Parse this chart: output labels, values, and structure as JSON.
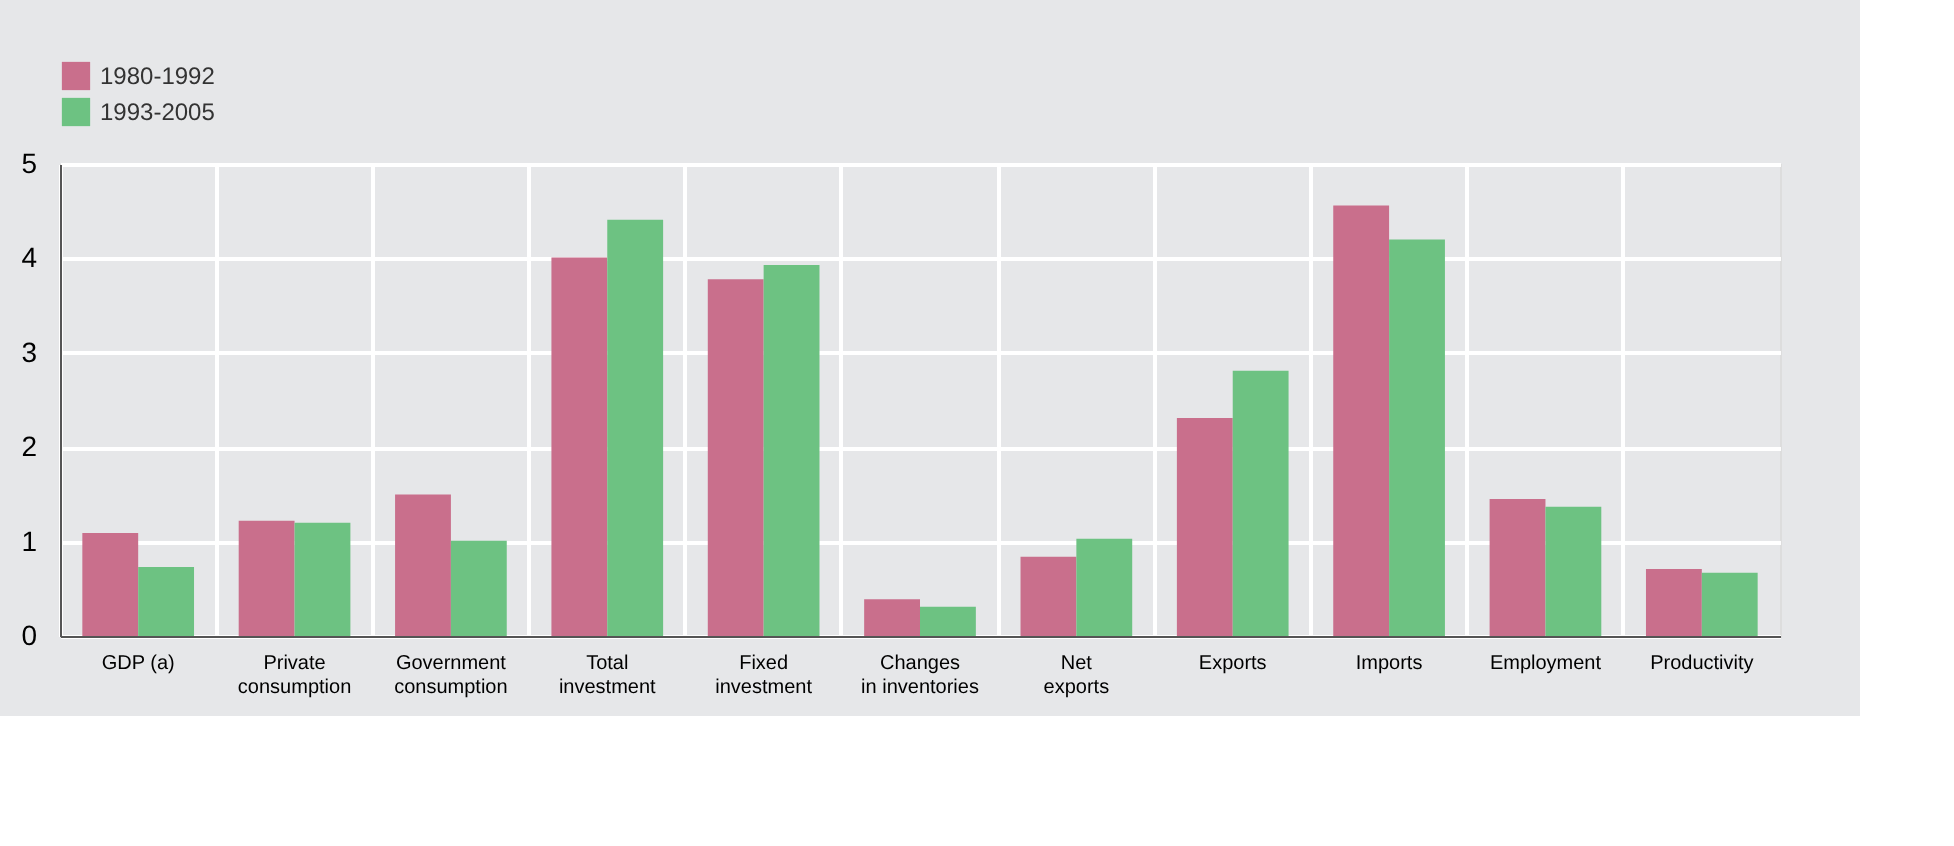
{
  "chart_data": {
    "type": "bar",
    "categories": [
      "GDP (a)",
      "Private\nconsumption",
      "Government\nconsumption",
      "Total\ninvestment",
      "Fixed\ninvestment",
      "Changes\nin inventories",
      "Net\nexports",
      "Exports",
      "Imports",
      "Employment",
      "Productivity"
    ],
    "series": [
      {
        "name": "1980-1992",
        "color": "#c96f8c",
        "values": [
          1.09,
          1.22,
          1.5,
          4.01,
          3.78,
          0.39,
          0.84,
          2.31,
          4.56,
          1.45,
          0.71
        ]
      },
      {
        "name": "1993-2005",
        "color": "#6dc282",
        "values": [
          0.73,
          1.2,
          1.01,
          4.41,
          3.93,
          0.31,
          1.03,
          2.81,
          4.2,
          1.37,
          0.67
        ]
      }
    ],
    "ylim": [
      0,
      5
    ],
    "yticks": [
      0,
      1,
      2,
      3,
      4,
      5
    ],
    "grid": true,
    "legend": "top left"
  }
}
